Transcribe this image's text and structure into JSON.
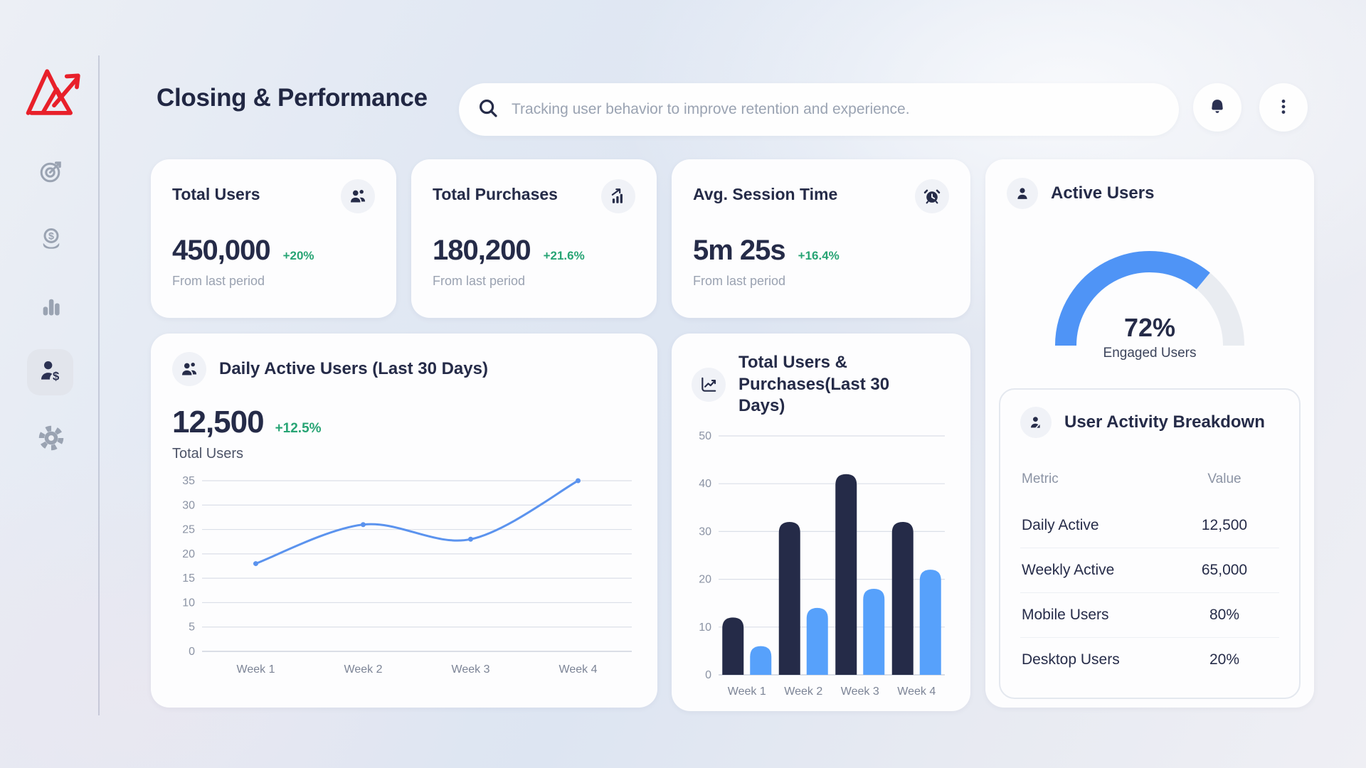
{
  "page": {
    "title": "Closing & Performance"
  },
  "header": {
    "search": {
      "placeholder": "Tracking user behavior to improve retention and experience."
    },
    "buttons": [
      "notification-bell",
      "more-options-menu"
    ]
  },
  "sidebar": {
    "logo": "red-mountain-trend-logo",
    "items": [
      {
        "icon": "target-icon",
        "active": false
      },
      {
        "icon": "coin-dollar-icon",
        "active": false
      },
      {
        "icon": "bar-chart-icon",
        "active": false
      },
      {
        "icon": "user-dollar-icon",
        "active": true
      },
      {
        "icon": "gear-icon",
        "active": false
      }
    ]
  },
  "stats": [
    {
      "title": "Total Users",
      "value": "450,000",
      "delta": "+20%",
      "caption": "From last period",
      "icon": "users-icon"
    },
    {
      "title": "Total Purchases",
      "value": "180,200",
      "delta": "+21.6%",
      "caption": "From last period",
      "icon": "chart-growth-icon"
    },
    {
      "title": "Avg. Session Time",
      "value": "5m 25s",
      "delta": "+16.4%",
      "caption": "From last period",
      "icon": "alarm-clock-icon"
    }
  ],
  "daily_active_card": {
    "title": "Daily Active Users (Last 30 Days)",
    "value": "12,500",
    "delta": "+12.5%",
    "caption": "Total Users",
    "icon": "users-icon"
  },
  "bar_card": {
    "title": "Total Users & Purchases(Last 30 Days)",
    "icon": "line-chart-up-icon"
  },
  "gauge_card": {
    "title": "Active Users",
    "value": "72%",
    "caption": "Engaged Users",
    "icon": "person-icon"
  },
  "breakdown": {
    "title": "User Activity Breakdown",
    "icon": "person-check-icon",
    "columns": [
      "Metric",
      "Value"
    ],
    "rows": [
      [
        "Daily Active",
        "12,500"
      ],
      [
        "Weekly Active",
        "65,000"
      ],
      [
        "Mobile Users",
        "80%"
      ],
      [
        "Desktop Users",
        "20%"
      ]
    ]
  },
  "colors": {
    "dark_navy": "#252b48",
    "accent_blue_gauge": "#4f94f6",
    "accent_blue_bars": "#57a1fb",
    "accent_blue_line": "#5b93ee",
    "green_delta": "#27a474",
    "logo_red": "#e8202a",
    "muted_gray": "#9aa2b1",
    "grid_gray": "#dbdfe8"
  },
  "chart_data": [
    {
      "type": "gauge",
      "title": "Active Users",
      "values": [
        72
      ],
      "unit": "%",
      "label": "Engaged Users",
      "range": [
        0,
        100
      ],
      "fill_color": "#4f94f6",
      "track_color": "#e9ecf1"
    },
    {
      "type": "line",
      "title": "Daily Active Users (Last 30 Days)",
      "categories": [
        "Week 1",
        "Week 2",
        "Week 3",
        "Week 4"
      ],
      "values": [
        18,
        26,
        23,
        35
      ],
      "ylim": [
        0,
        35
      ],
      "yticks": [
        0,
        5,
        10,
        15,
        20,
        25,
        30,
        35
      ],
      "line_color": "#5b93ee",
      "grid": true,
      "legend_position": "none"
    },
    {
      "type": "bar",
      "title": "Total Users & Purchases(Last 30 Days)",
      "categories": [
        "Week 1",
        "Week 2",
        "Week 3",
        "Week 4"
      ],
      "series": [
        {
          "name": "Total Users",
          "values": [
            12,
            32,
            42,
            32
          ],
          "color": "#252b48"
        },
        {
          "name": "Purchases",
          "values": [
            6,
            14,
            18,
            22
          ],
          "color": "#57a1fb"
        }
      ],
      "ylim": [
        0,
        50
      ],
      "yticks": [
        0,
        10,
        20,
        30,
        40,
        50
      ],
      "grid": true,
      "legend_position": "none"
    }
  ]
}
